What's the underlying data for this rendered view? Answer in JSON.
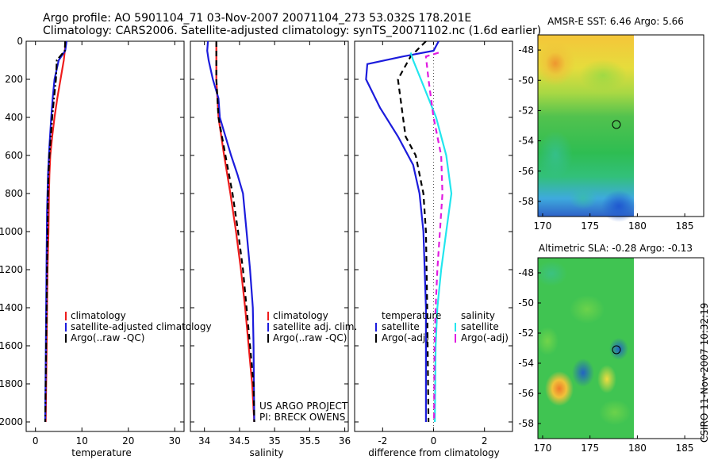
{
  "header": {
    "line1": "Argo profile: AO 5901104_71 03-Nov-2007 20071104_273 53.032S 178.201E",
    "line2": "Climatology: CARS2006. Satellite-adjusted climatology: synTS_20071102.nc (1.6d earlier)"
  },
  "footer_stamp": "CSIRO 11-Nov-2007 10:32:19",
  "colors": {
    "climatology": "#ee1c1c",
    "satellite": "#1c1cdc",
    "argo": "#000000",
    "salinity_sat": "#22e6ee",
    "salinity_argo": "#e01ce0"
  },
  "chart_data": [
    {
      "type": "line",
      "xlabel": "temperature",
      "ylim": [
        0,
        2050
      ],
      "y_inverted": true,
      "xlim": [
        -2,
        32
      ],
      "xticks": [
        0,
        10,
        20,
        30
      ],
      "yticks": [
        0,
        200,
        400,
        600,
        800,
        1000,
        1200,
        1400,
        1600,
        1800,
        2000
      ],
      "legend": [
        "climatology",
        "satellite-adjusted climatology",
        "Argo(..raw -QC)"
      ],
      "series": [
        {
          "name": "climatology",
          "style": "solid",
          "color": "#ee1c1c",
          "points": [
            [
              6.5,
              10
            ],
            [
              6.1,
              100
            ],
            [
              5.4,
              200
            ],
            [
              4.7,
              300
            ],
            [
              4.1,
              400
            ],
            [
              3.6,
              500
            ],
            [
              3.2,
              600
            ],
            [
              3.0,
              700
            ],
            [
              2.9,
              800
            ],
            [
              2.8,
              1000
            ],
            [
              2.6,
              1200
            ],
            [
              2.5,
              1400
            ],
            [
              2.4,
              1600
            ],
            [
              2.3,
              1800
            ],
            [
              2.2,
              2000
            ]
          ]
        },
        {
          "name": "satellite-adjusted climatology",
          "style": "solid",
          "color": "#1c1cdc",
          "points": [
            [
              6.7,
              0
            ],
            [
              6.4,
              50
            ],
            [
              5.0,
              100
            ],
            [
              4.1,
              200
            ],
            [
              3.7,
              300
            ],
            [
              3.4,
              400
            ],
            [
              3.0,
              550
            ],
            [
              2.7,
              700
            ],
            [
              2.5,
              900
            ],
            [
              2.4,
              1100
            ],
            [
              2.3,
              1400
            ],
            [
              2.2,
              1700
            ],
            [
              2.1,
              2000
            ]
          ]
        },
        {
          "name": "Argo(..raw -QC)",
          "style": "dashdot",
          "color": "#000000",
          "points": [
            [
              6.4,
              0
            ],
            [
              6.3,
              50
            ],
            [
              4.6,
              100
            ],
            [
              4.4,
              200
            ],
            [
              4.0,
              300
            ],
            [
              3.6,
              400
            ],
            [
              3.3,
              500
            ],
            [
              3.0,
              600
            ],
            [
              2.8,
              700
            ],
            [
              2.7,
              800
            ],
            [
              2.6,
              1000
            ],
            [
              2.5,
              1200
            ],
            [
              2.4,
              1400
            ],
            [
              2.3,
              1600
            ],
            [
              2.2,
              1800
            ],
            [
              2.1,
              2000
            ]
          ]
        }
      ]
    },
    {
      "type": "line",
      "xlabel": "salinity",
      "ylim": [
        0,
        2050
      ],
      "y_inverted": true,
      "xlim": [
        33.8,
        36.05
      ],
      "xticks": [
        34,
        34.5,
        35,
        35.5,
        36
      ],
      "legend": [
        "climatology",
        "satellite adj. clim.",
        "Argo(..raw -QC)"
      ],
      "annotation": [
        "US ARGO PROJECT",
        "PI: BRECK OWENS"
      ],
      "series": [
        {
          "name": "climatology",
          "style": "solid",
          "color": "#ee1c1c",
          "points": [
            [
              34.17,
              10
            ],
            [
              34.17,
              200
            ],
            [
              34.2,
              400
            ],
            [
              34.28,
              600
            ],
            [
              34.37,
              800
            ],
            [
              34.45,
              1000
            ],
            [
              34.52,
              1200
            ],
            [
              34.58,
              1400
            ],
            [
              34.63,
              1600
            ],
            [
              34.68,
              1800
            ],
            [
              34.71,
              2000
            ]
          ]
        },
        {
          "name": "satellite adj. clim.",
          "style": "solid",
          "color": "#1c1cdc",
          "points": [
            [
              34.05,
              0
            ],
            [
              34.04,
              50
            ],
            [
              34.06,
              100
            ],
            [
              34.12,
              200
            ],
            [
              34.2,
              300
            ],
            [
              34.22,
              400
            ],
            [
              34.3,
              500
            ],
            [
              34.38,
              600
            ],
            [
              34.47,
              700
            ],
            [
              34.55,
              800
            ],
            [
              34.6,
              1000
            ],
            [
              34.65,
              1200
            ],
            [
              34.69,
              1400
            ],
            [
              34.7,
              1600
            ],
            [
              34.71,
              2000
            ]
          ]
        },
        {
          "name": "Argo(..raw -QC)",
          "style": "dashed",
          "color": "#000000",
          "points": [
            [
              34.17,
              0
            ],
            [
              34.17,
              200
            ],
            [
              34.2,
              400
            ],
            [
              34.3,
              600
            ],
            [
              34.4,
              800
            ],
            [
              34.48,
              1000
            ],
            [
              34.55,
              1200
            ],
            [
              34.6,
              1400
            ],
            [
              34.65,
              1600
            ],
            [
              34.7,
              1800
            ],
            [
              34.71,
              2000
            ]
          ]
        }
      ]
    },
    {
      "type": "line",
      "xlabel": "difference from climatology",
      "ylim": [
        0,
        2050
      ],
      "y_inverted": true,
      "xlim": [
        -3.1,
        3.1
      ],
      "xticks": [
        -2,
        0,
        2
      ],
      "legend_temperature": [
        "temperature",
        "satellite",
        "Argo(-adj)"
      ],
      "legend_salinity": [
        "salinity",
        "satellite",
        "Argo(-adj)"
      ],
      "series": [
        {
          "name": "temperature satellite",
          "style": "solid",
          "color": "#1c1cdc",
          "points": [
            [
              0.2,
              0
            ],
            [
              0.0,
              50
            ],
            [
              -1.2,
              80
            ],
            [
              -2.6,
              120
            ],
            [
              -2.65,
              200
            ],
            [
              -2.1,
              350
            ],
            [
              -1.4,
              500
            ],
            [
              -0.8,
              650
            ],
            [
              -0.55,
              800
            ],
            [
              -0.4,
              1000
            ],
            [
              -0.35,
              1200
            ],
            [
              -0.3,
              1400
            ],
            [
              -0.3,
              2000
            ]
          ]
        },
        {
          "name": "temperature Argo(-adj)",
          "style": "dashed",
          "color": "#000000",
          "points": [
            [
              -0.3,
              0
            ],
            [
              -0.9,
              80
            ],
            [
              -1.4,
              200
            ],
            [
              -1.3,
              300
            ],
            [
              -1.2,
              400
            ],
            [
              -1.1,
              500
            ],
            [
              -0.7,
              600
            ],
            [
              -0.4,
              800
            ],
            [
              -0.3,
              1000
            ],
            [
              -0.25,
              1400
            ],
            [
              -0.2,
              2000
            ]
          ]
        },
        {
          "name": "salinity satellite",
          "style": "solid",
          "color": "#22e6ee",
          "points": [
            [
              -0.9,
              60
            ],
            [
              -0.8,
              100
            ],
            [
              -0.5,
              200
            ],
            [
              0.1,
              400
            ],
            [
              0.5,
              600
            ],
            [
              0.7,
              800
            ],
            [
              0.5,
              1000
            ],
            [
              0.3,
              1200
            ],
            [
              0.15,
              1400
            ],
            [
              0.08,
              1600
            ],
            [
              0.05,
              2000
            ]
          ]
        },
        {
          "name": "salinity Argo(-adj)",
          "style": "dashed",
          "color": "#e01ce0",
          "points": [
            [
              0.2,
              60
            ],
            [
              -0.3,
              80
            ],
            [
              -0.2,
              200
            ],
            [
              0.0,
              400
            ],
            [
              0.3,
              600
            ],
            [
              0.35,
              800
            ],
            [
              0.25,
              1000
            ],
            [
              0.15,
              1200
            ],
            [
              0.08,
              1400
            ],
            [
              0.04,
              1600
            ],
            [
              0.02,
              2000
            ]
          ]
        }
      ]
    },
    {
      "type": "heatmap",
      "title": "AMSR-E SST: 6.46  Argo: 5.66",
      "xlim": [
        169.5,
        187
      ],
      "ylim": [
        -59,
        -47
      ],
      "xticks": [
        170,
        175,
        180,
        185
      ],
      "yticks": [
        -48,
        -50,
        -52,
        -54,
        -56,
        -58
      ],
      "marker": {
        "lon": 178.2,
        "lat": -53.03
      }
    },
    {
      "type": "heatmap",
      "title": "Altimetric SLA: -0.28  Argo: -0.13",
      "xlim": [
        169.5,
        187
      ],
      "ylim": [
        -59,
        -47
      ],
      "xticks": [
        170,
        175,
        180,
        185
      ],
      "yticks": [
        -48,
        -50,
        -52,
        -54,
        -56,
        -58
      ],
      "marker": {
        "lon": 178.2,
        "lat": -53.03
      }
    }
  ]
}
